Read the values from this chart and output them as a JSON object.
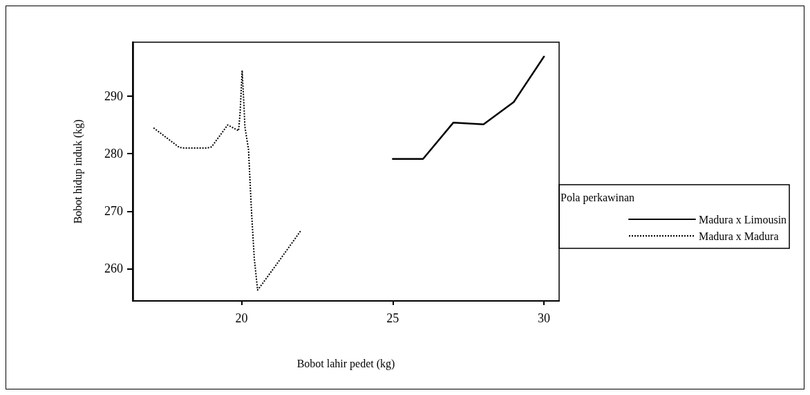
{
  "chart_data": {
    "type": "line",
    "xlabel": "Bobot lahir pedet (kg)",
    "ylabel": "Bobot hidup induk (kg)",
    "legend_title": "Pola perkawinan",
    "legend": "right",
    "marker": "none",
    "grid": false,
    "xlim": [
      16.4,
      30.5
    ],
    "xticks": [
      20,
      25,
      30
    ],
    "ylim": [
      254.4,
      299.4
    ],
    "yticks": [
      260,
      270,
      280,
      290
    ],
    "series": [
      {
        "name": "Madura x Limousin",
        "color": "#000000",
        "line_style": "solid",
        "x": [
          25,
          26,
          27,
          28,
          29,
          30
        ],
        "values": [
          279.1,
          279.1,
          285.4,
          285.1,
          289.0,
          296.9
        ]
      },
      {
        "name": "Madura x Madura",
        "color": "#000000",
        "line_style": "dotted",
        "x": [
          17.09,
          17.94,
          18.1,
          18.86,
          19.01,
          19.54,
          19.69,
          19.9,
          19.95,
          20.02,
          20.06,
          20.08,
          20.11,
          20.23,
          20.27,
          20.33,
          20.42,
          20.53,
          20.69,
          21.3,
          21.97
        ],
        "values": [
          284.5,
          281.1,
          281.0,
          281.0,
          281.2,
          285.0,
          284.6,
          284.0,
          287.0,
          294.5,
          290.3,
          288.3,
          284.7,
          280.7,
          276.3,
          269.8,
          261.8,
          256.3,
          257.4,
          261.8,
          266.7
        ]
      }
    ]
  }
}
